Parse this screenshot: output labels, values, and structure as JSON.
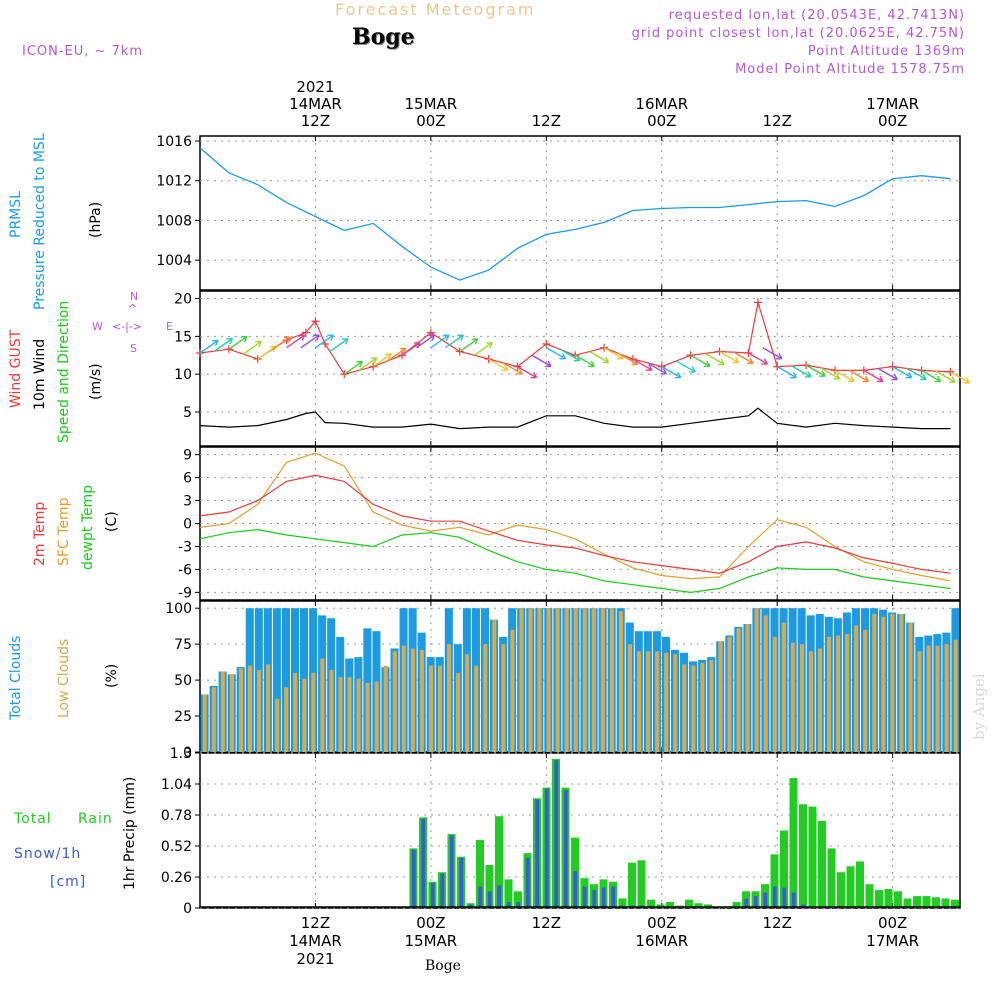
{
  "header": {
    "top_title": "Forecast Meteogram",
    "location": "Boge",
    "model": "ICON-EU, ~ 7km",
    "requested": "requested lon,lat (20.0543E, 42.7413N)",
    "grid_point": "grid point closest lon,lat (20.0625E, 42.75N)",
    "point_alt": "Point Altitude 1369m",
    "model_alt": "Model Point Altitude 1578.75m",
    "watermark": "by Angel",
    "bottom_location": "Boge"
  },
  "colors": {
    "pressure": "#1e9be0",
    "gust": "#e83c3c",
    "wind10m": "#000000",
    "temp2m": "#e83c3c",
    "sfc_temp": "#e0a030",
    "dewpt": "#1ec81e",
    "total_clouds": "#1e9be0",
    "low_clouds": "#d4aa55",
    "rain": "#22cc22",
    "snow": "#3a5ad8",
    "axis_label_purple": "#b05ad0"
  },
  "time_axis": {
    "top_ticks": [
      {
        "l1": "2021",
        "l2": "14MAR",
        "l3": "12Z"
      },
      {
        "l1": "",
        "l2": "15MAR",
        "l3": "00Z"
      },
      {
        "l1": "",
        "l2": "",
        "l3": "12Z"
      },
      {
        "l1": "",
        "l2": "16MAR",
        "l3": "00Z"
      },
      {
        "l1": "",
        "l2": "",
        "l3": "12Z"
      },
      {
        "l1": "",
        "l2": "17MAR",
        "l3": "00Z"
      }
    ],
    "bottom_ticks": [
      {
        "l1": "12Z",
        "l2": "14MAR",
        "l3": "2021"
      },
      {
        "l1": "00Z",
        "l2": "15MAR",
        "l3": ""
      },
      {
        "l1": "12Z",
        "l2": "",
        "l3": ""
      },
      {
        "l1": "00Z",
        "l2": "16MAR",
        "l3": ""
      },
      {
        "l1": "12Z",
        "l2": "",
        "l3": ""
      },
      {
        "l1": "00Z",
        "l2": "17MAR",
        "l3": ""
      }
    ]
  },
  "panel_labels": {
    "pressure": {
      "l1": "PRMSL",
      "l2": "Pressure Reduced to MSL",
      "unit": "(hPa)"
    },
    "wind": {
      "l1": "Wind GUST",
      "l2": "10m Wind",
      "l3": "Speed and Direction",
      "unit": "(m/s)",
      "compass_ns": "N",
      "compass_s": "S",
      "compass_w": "W",
      "compass_e": "E"
    },
    "temp": {
      "l1": "2m Temp",
      "l2": "SFC Temp",
      "l3": "dewpt Temp",
      "unit": "(C)"
    },
    "clouds": {
      "l1": "Total Clouds",
      "l2": "Low Clouds",
      "unit": "(%)"
    },
    "precip": {
      "l1": "Total",
      "l1b": "Rain",
      "l2": "Snow/1h",
      "l3": "[cm]",
      "axis": "1hr Precip (mm)"
    }
  },
  "chart_data": [
    {
      "type": "line",
      "title": "PRMSL",
      "ylabel": "(hPa)",
      "ylim": [
        1001,
        1016.5
      ],
      "yticks": [
        "1016",
        "1012",
        "1008",
        "1004"
      ],
      "x_hours": [
        0,
        3,
        6,
        9,
        12,
        15,
        18,
        21,
        24,
        27,
        30,
        33,
        36,
        39,
        42,
        45,
        48,
        51,
        54,
        57,
        60,
        63,
        66,
        69,
        72,
        75,
        78
      ],
      "series": [
        {
          "name": "PRMSL",
          "values": [
            1015.3,
            1012.8,
            1011.6,
            1009.8,
            1008.4,
            1007.0,
            1007.7,
            1005.4,
            1003.3,
            1002.0,
            1003.0,
            1005.2,
            1006.6,
            1007.1,
            1007.8,
            1009.0,
            1009.2,
            1009.3,
            1009.3,
            1009.6,
            1009.9,
            1010.0,
            1009.4,
            1010.5,
            1012.2,
            1012.5,
            1012.2
          ]
        }
      ]
    },
    {
      "type": "line",
      "title": "Wind",
      "ylabel": "(m/s)",
      "ylim": [
        0.5,
        21
      ],
      "yticks": [
        "20",
        "15",
        "10",
        "5"
      ],
      "x_hours": [
        0,
        3,
        6,
        9,
        11,
        12,
        13,
        15,
        18,
        21,
        24,
        27,
        30,
        33,
        36,
        39,
        42,
        45,
        48,
        51,
        54,
        57,
        58,
        60,
        63,
        66,
        69,
        72,
        75,
        78
      ],
      "series": [
        {
          "name": "Wind GUST",
          "values": [
            12.8,
            13.3,
            12.0,
            14.5,
            15.5,
            17.0,
            14.0,
            10.0,
            11.0,
            12.5,
            15.5,
            13.0,
            12.0,
            11.0,
            14.0,
            12.5,
            13.5,
            12.0,
            11.0,
            12.5,
            13.0,
            12.8,
            19.5,
            11.0,
            11.2,
            10.5,
            10.5,
            11.0,
            10.5,
            10.3
          ]
        },
        {
          "name": "10m Wind",
          "values": [
            3.2,
            3.0,
            3.2,
            4.0,
            4.8,
            5.0,
            3.6,
            3.5,
            3.0,
            3.0,
            3.4,
            2.8,
            3.0,
            3.0,
            4.5,
            4.5,
            3.5,
            3.0,
            3.0,
            3.5,
            4.0,
            4.5,
            5.5,
            3.5,
            3.0,
            3.5,
            3.2,
            3.0,
            2.8,
            2.8
          ]
        }
      ]
    },
    {
      "type": "line",
      "title": "Temperature",
      "ylabel": "(C)",
      "ylim": [
        -10,
        10
      ],
      "yticks": [
        "9",
        "6",
        "3",
        "0",
        "-3",
        "-6",
        "-9"
      ],
      "x_hours": [
        0,
        3,
        6,
        9,
        12,
        15,
        18,
        21,
        24,
        27,
        30,
        33,
        36,
        39,
        42,
        45,
        48,
        51,
        54,
        57,
        60,
        63,
        66,
        69,
        72,
        75,
        78
      ],
      "series": [
        {
          "name": "2m Temp",
          "values": [
            1.0,
            1.5,
            3.0,
            5.5,
            6.3,
            5.5,
            2.5,
            1.0,
            0.3,
            0.3,
            -1.0,
            -2.2,
            -2.8,
            -3.2,
            -4.2,
            -5.0,
            -5.5,
            -6.0,
            -6.5,
            -5.0,
            -3.0,
            -2.4,
            -3.2,
            -4.5,
            -5.2,
            -6.0,
            -6.5
          ]
        },
        {
          "name": "SFC Temp",
          "values": [
            -0.5,
            0.0,
            2.5,
            8.0,
            9.2,
            7.5,
            1.5,
            -0.2,
            -1.0,
            -0.5,
            -1.5,
            -0.2,
            -0.8,
            -2.0,
            -4.0,
            -5.8,
            -6.8,
            -7.2,
            -7.0,
            -3.0,
            0.5,
            -0.5,
            -3.0,
            -5.0,
            -6.0,
            -6.8,
            -7.5
          ]
        },
        {
          "name": "dewpt Temp",
          "values": [
            -2.0,
            -1.2,
            -0.8,
            -1.5,
            -2.0,
            -2.5,
            -3.0,
            -1.5,
            -1.2,
            -1.8,
            -3.5,
            -5.0,
            -6.0,
            -6.5,
            -7.5,
            -8.0,
            -8.5,
            -9.0,
            -8.5,
            -7.0,
            -5.8,
            -6.0,
            -6.0,
            -7.0,
            -7.5,
            -8.0,
            -8.5
          ]
        }
      ]
    },
    {
      "type": "bar",
      "title": "Clouds",
      "ylabel": "(%)",
      "ylim": [
        0,
        105
      ],
      "yticks": [
        "100",
        "75",
        "50",
        "25",
        "0"
      ],
      "series": [
        {
          "name": "Total Clouds",
          "values": [
            40,
            46,
            56,
            54,
            59,
            100,
            100,
            100,
            100,
            100,
            100,
            100,
            100,
            95,
            93,
            80,
            65,
            66,
            86,
            84,
            59,
            72,
            100,
            100,
            83,
            66,
            66,
            100,
            75,
            100,
            100,
            100,
            92,
            80,
            100,
            100,
            100,
            100,
            100,
            100,
            100,
            100,
            100,
            100,
            100,
            100,
            100,
            90,
            84,
            84,
            84,
            80,
            71,
            69,
            63,
            64,
            66,
            77,
            81,
            87,
            89,
            100,
            100,
            100,
            100,
            100,
            100,
            95,
            96,
            94,
            93,
            97,
            100,
            100,
            100,
            99,
            97,
            96,
            90,
            80,
            81,
            82,
            83,
            100
          ]
        },
        {
          "name": "Low Clouds",
          "values": [
            40,
            45,
            56,
            54,
            58,
            60,
            57,
            61,
            37,
            45,
            55,
            51,
            55,
            65,
            57,
            52,
            52,
            51,
            48,
            49,
            60,
            70,
            74,
            72,
            71,
            60,
            60,
            75,
            55,
            68,
            60,
            75,
            92,
            75,
            85,
            100,
            100,
            100,
            100,
            100,
            100,
            100,
            100,
            100,
            100,
            100,
            98,
            75,
            70,
            70,
            70,
            69,
            68,
            61,
            60,
            62,
            64,
            77,
            80,
            86,
            89,
            100,
            95,
            80,
            90,
            76,
            75,
            70,
            72,
            80,
            81,
            82,
            88,
            85,
            96,
            94,
            96,
            96,
            90,
            70,
            74,
            74,
            75,
            78
          ]
        }
      ]
    },
    {
      "type": "bar",
      "title": "1hr Precip",
      "ylabel": "1hr Precip (mm)",
      "ylim": [
        0,
        1.3
      ],
      "yticks": [
        "1.3",
        "1.04",
        "0.78",
        "0.52",
        "0.26",
        "0"
      ],
      "series": [
        {
          "name": "Total Rain",
          "values": [
            0,
            0,
            0,
            0,
            0,
            0,
            0,
            0,
            0,
            0,
            0,
            0,
            0,
            0,
            0,
            0,
            0,
            0,
            0,
            0,
            0,
            0,
            0.5,
            0.76,
            0.22,
            0.3,
            0.62,
            0.43,
            0.04,
            0.57,
            0.36,
            0.77,
            0.24,
            0.14,
            0.46,
            0.92,
            1.01,
            1.25,
            1.01,
            0.59,
            0.25,
            0.2,
            0.24,
            0.22,
            0.08,
            0.38,
            0.4,
            0.07,
            0.03,
            0.05,
            0.02,
            0.07,
            0.04,
            0.03,
            0,
            0.01,
            0.05,
            0.14,
            0.14,
            0.2,
            0.45,
            0.65,
            1.09,
            0.87,
            0.85,
            0.73,
            0.5,
            0.3,
            0.35,
            0.39,
            0.2,
            0.15,
            0.16,
            0.14,
            0.08,
            0.1,
            0.1,
            0.09,
            0.08,
            0.07
          ]
        },
        {
          "name": "Snow/1h",
          "values": [
            0,
            0,
            0,
            0,
            0,
            0,
            0,
            0,
            0,
            0,
            0,
            0,
            0,
            0,
            0,
            0,
            0,
            0,
            0,
            0,
            0,
            0,
            0.49,
            0.75,
            0.21,
            0.29,
            0.61,
            0.42,
            0.03,
            0.18,
            0.14,
            0.19,
            0.05,
            0.05,
            0.42,
            0.91,
            1.0,
            1.24,
            0.99,
            0.31,
            0.18,
            0.15,
            0.17,
            0.18,
            0.02,
            0.02,
            0.02,
            0,
            0,
            0,
            0,
            0,
            0,
            0,
            0,
            0,
            0,
            0.08,
            0.1,
            0.13,
            0.18,
            0.17,
            0.13,
            0.03,
            0,
            0,
            0,
            0,
            0,
            0,
            0,
            0,
            0,
            0,
            0,
            0,
            0,
            0,
            0,
            0
          ]
        }
      ]
    }
  ]
}
